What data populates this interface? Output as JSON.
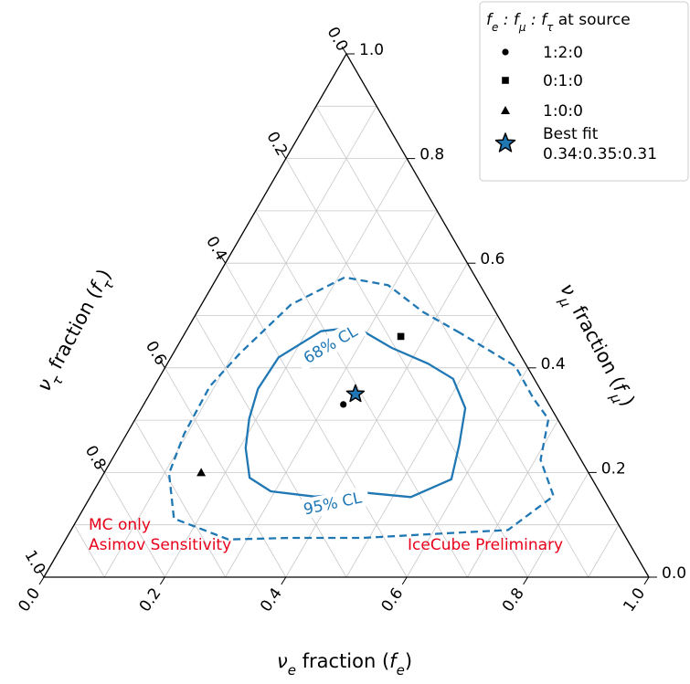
{
  "chart_data": {
    "type": "ternary",
    "axes": {
      "bottom": {
        "label_prefix": "ν",
        "label_sub": "e",
        "label_mid": " fraction (",
        "label_f": "f",
        "label_fsub": "e",
        "label_end": ")"
      },
      "right": {
        "label_prefix": "ν",
        "label_sub": "μ",
        "label_mid": " fraction (",
        "label_f": "f",
        "label_fsub": "μ",
        "label_end": ")"
      },
      "left": {
        "label_prefix": "ν",
        "label_sub": "τ",
        "label_mid": " fraction (",
        "label_f": "f",
        "label_fsub": "τ",
        "label_end": ")"
      }
    },
    "ticks": [
      "0.0",
      "0.2",
      "0.4",
      "0.6",
      "0.8",
      "1.0"
    ],
    "grid_step": 0.1,
    "grid": true,
    "points": [
      {
        "label": "1:2:0",
        "marker": "circle",
        "fe": 0.33,
        "fmu": 0.33,
        "ftau": 0.34
      },
      {
        "label": "0:1:0",
        "marker": "square",
        "fe": 0.36,
        "fmu": 0.46,
        "ftau": 0.18
      },
      {
        "label": "1:0:0",
        "marker": "triangle",
        "fe": 0.16,
        "fmu": 0.2,
        "ftau": 0.64
      },
      {
        "label": "Best fit",
        "label2": "0.34:0.35:0.31",
        "marker": "star",
        "fe": 0.34,
        "fmu": 0.35,
        "ftau": 0.31
      }
    ],
    "contours": [
      {
        "name": "68% CL",
        "style": "solid",
        "points": [
          [
            0.356,
            0.438
          ],
          [
            0.277,
            0.478
          ],
          [
            0.223,
            0.47
          ],
          [
            0.178,
            0.42
          ],
          [
            0.174,
            0.36
          ],
          [
            0.188,
            0.303
          ],
          [
            0.21,
            0.247
          ],
          [
            0.245,
            0.19
          ],
          [
            0.293,
            0.164
          ],
          [
            0.371,
            0.154
          ],
          [
            0.445,
            0.162
          ],
          [
            0.53,
            0.153
          ],
          [
            0.58,
            0.187
          ],
          [
            0.56,
            0.253
          ],
          [
            0.535,
            0.323
          ],
          [
            0.487,
            0.379
          ],
          [
            0.431,
            0.408
          ]
        ]
      },
      {
        "name": "95% CL",
        "style": "dashed",
        "points": [
          [
            0.454,
            0.467
          ],
          [
            0.373,
            0.507
          ],
          [
            0.29,
            0.558
          ],
          [
            0.211,
            0.573
          ],
          [
            0.148,
            0.521
          ],
          [
            0.11,
            0.427
          ],
          [
            0.092,
            0.365
          ],
          [
            0.095,
            0.273
          ],
          [
            0.108,
            0.198
          ],
          [
            0.159,
            0.112
          ],
          [
            0.269,
            0.072
          ],
          [
            0.371,
            0.075
          ],
          [
            0.49,
            0.075
          ],
          [
            0.612,
            0.083
          ],
          [
            0.722,
            0.09
          ],
          [
            0.765,
            0.155
          ],
          [
            0.709,
            0.224
          ],
          [
            0.683,
            0.302
          ],
          [
            0.637,
            0.343
          ],
          [
            0.578,
            0.403
          ],
          [
            0.52,
            0.433
          ]
        ]
      }
    ]
  },
  "legend": {
    "title_html": "f<tspan baseline-shift=\"sub\" font-size=\"12\">e</tspan> : f<tspan baseline-shift=\"sub\" font-size=\"12\">μ</tspan> : f<tspan baseline-shift=\"sub\" font-size=\"12\">τ</tspan>",
    "title_plain": "at source"
  },
  "annotations": {
    "left_line1": "MC only",
    "left_line2": "Asimov Sensitivity",
    "right": "IceCube Preliminary"
  },
  "colors": {
    "contour": "#1f77b4",
    "star_fill": "#1f77b4",
    "annotation": "#e8001a",
    "grid": "#c8c8c8"
  }
}
